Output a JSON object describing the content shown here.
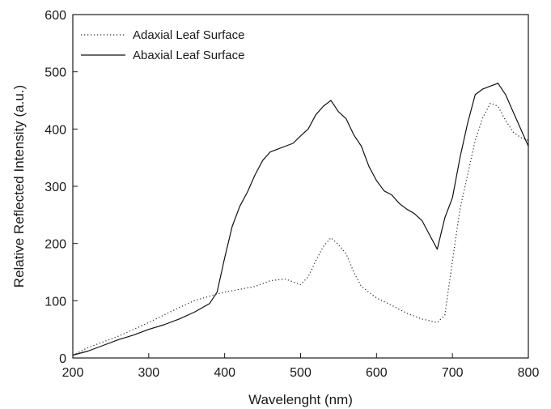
{
  "chart_data": {
    "type": "line",
    "title": "",
    "xlabel": "Wavelenght (nm)",
    "ylabel": "Relative Reflected Intensity (a.u.)",
    "xlim": [
      200,
      800
    ],
    "ylim": [
      0,
      600
    ],
    "x_ticks": [
      200,
      300,
      400,
      500,
      600,
      700,
      800
    ],
    "y_ticks": [
      0,
      100,
      200,
      300,
      400,
      500,
      600
    ],
    "grid": false,
    "legend_position": "top-left",
    "series": [
      {
        "name": "Adaxial Leaf Surface",
        "style": "dotted",
        "color": "#222222",
        "x": [
          200,
          220,
          240,
          260,
          280,
          300,
          320,
          340,
          360,
          380,
          400,
          420,
          440,
          460,
          480,
          500,
          510,
          520,
          530,
          540,
          550,
          560,
          570,
          580,
          600,
          620,
          640,
          660,
          680,
          690,
          700,
          710,
          720,
          730,
          740,
          750,
          760,
          770,
          780,
          790,
          800
        ],
        "y": [
          5,
          18,
          28,
          38,
          50,
          62,
          75,
          88,
          100,
          108,
          115,
          120,
          125,
          135,
          138,
          128,
          142,
          170,
          195,
          210,
          198,
          182,
          150,
          125,
          105,
          92,
          78,
          68,
          62,
          75,
          170,
          260,
          320,
          380,
          420,
          445,
          440,
          415,
          395,
          385,
          380
        ]
      },
      {
        "name": "Abaxial Leaf Surface",
        "style": "solid",
        "color": "#111111",
        "x": [
          200,
          220,
          240,
          260,
          280,
          300,
          320,
          340,
          360,
          380,
          390,
          400,
          410,
          420,
          430,
          440,
          450,
          460,
          470,
          480,
          490,
          500,
          510,
          520,
          530,
          540,
          550,
          560,
          570,
          580,
          590,
          600,
          610,
          620,
          630,
          640,
          650,
          660,
          670,
          680,
          690,
          700,
          710,
          720,
          730,
          740,
          750,
          760,
          770,
          780,
          790,
          800
        ],
        "y": [
          5,
          12,
          22,
          32,
          40,
          50,
          58,
          68,
          80,
          95,
          115,
          175,
          230,
          265,
          290,
          320,
          345,
          360,
          365,
          370,
          375,
          388,
          400,
          425,
          440,
          450,
          430,
          418,
          390,
          370,
          335,
          310,
          292,
          285,
          270,
          260,
          252,
          240,
          215,
          190,
          245,
          280,
          350,
          410,
          460,
          470,
          475,
          480,
          460,
          430,
          400,
          370
        ]
      }
    ]
  }
}
